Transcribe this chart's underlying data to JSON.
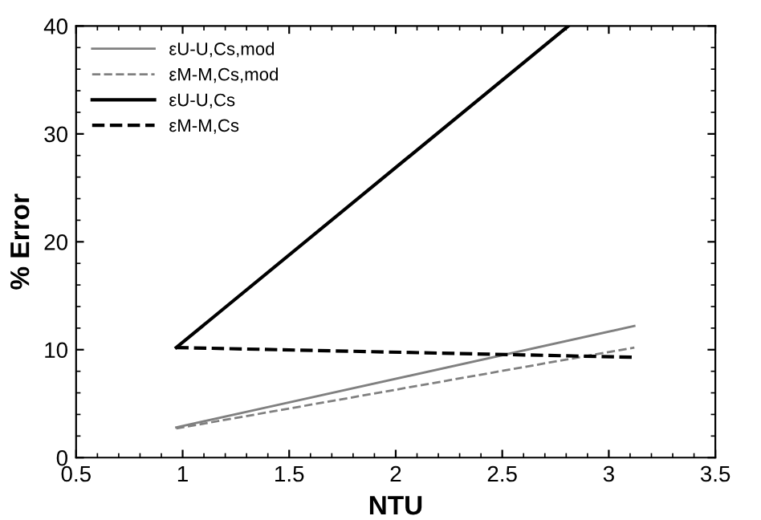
{
  "chart_data": {
    "type": "line",
    "xlabel": "NTU",
    "ylabel": "% Error",
    "xlim": [
      0.5,
      3.5
    ],
    "xticks": [
      0.5,
      1,
      1.5,
      2,
      2.5,
      3,
      3.5
    ],
    "ylim": [
      0,
      40
    ],
    "yticks": [
      0,
      10,
      20,
      30,
      40
    ],
    "grid": false,
    "legend": "top left",
    "marker": "none",
    "series": [
      {
        "name": "εU-U,Cs,mod",
        "color": "#808080",
        "line_style": "solid",
        "x": [
          0.97,
          3.12
        ],
        "values": [
          2.8,
          12.2
        ]
      },
      {
        "name": "εM-M,Cs,mod",
        "color": "#808080",
        "line_style": "dashed",
        "x": [
          0.97,
          3.12
        ],
        "values": [
          2.7,
          10.2
        ]
      },
      {
        "name": "εU-U,Cs",
        "color": "#000000",
        "line_style": "solid",
        "x": [
          0.97,
          2.81
        ],
        "values": [
          10.2,
          40
        ]
      },
      {
        "name": "εM-M,Cs",
        "color": "#000000",
        "line_style": "dashed",
        "x": [
          0.97,
          3.12
        ],
        "values": [
          10.2,
          9.3
        ]
      }
    ]
  }
}
